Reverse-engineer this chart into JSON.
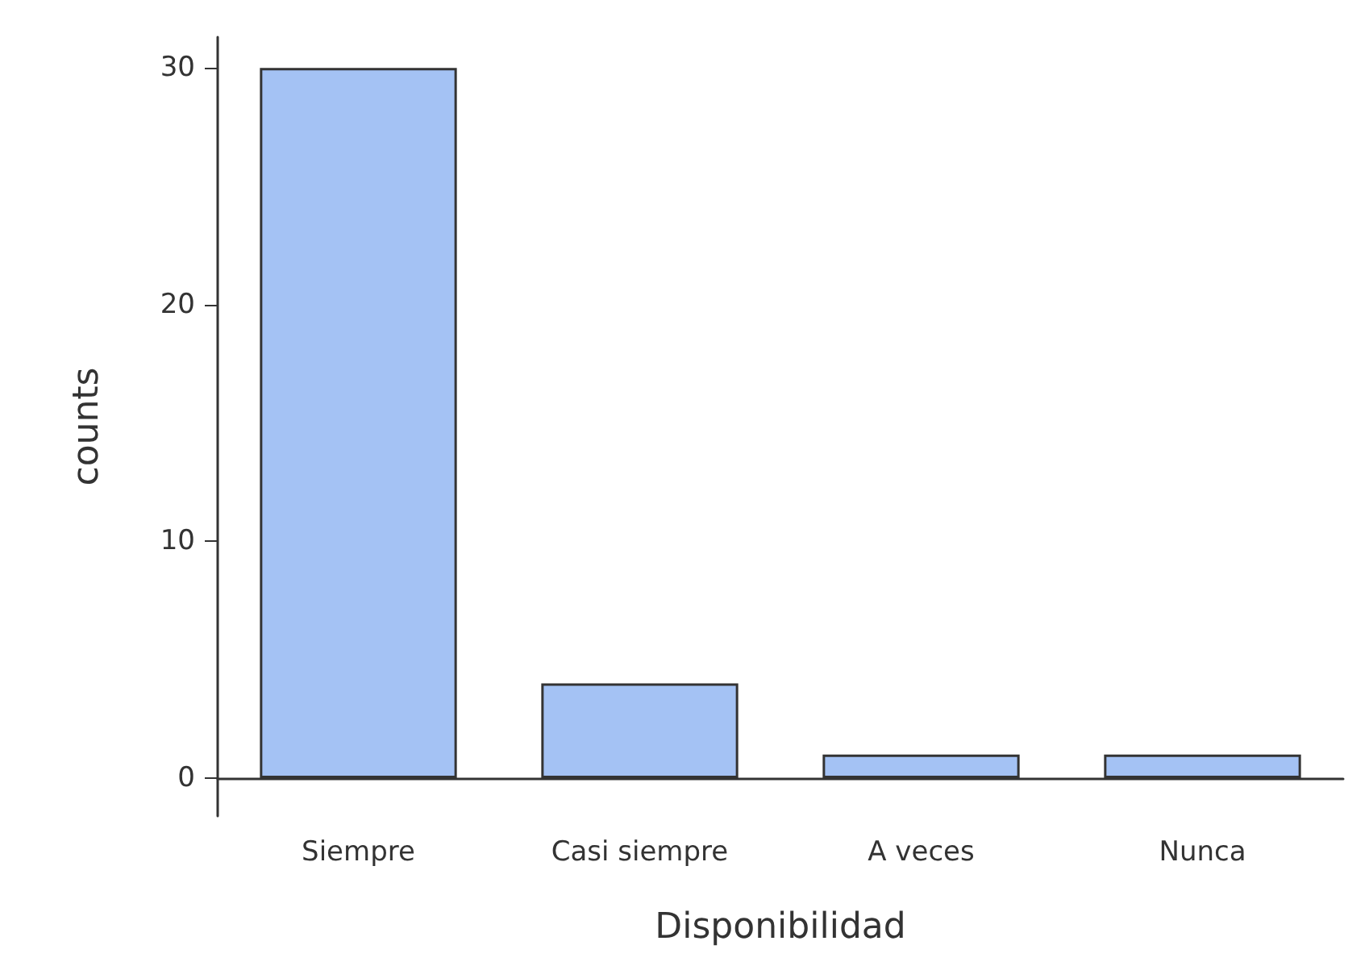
{
  "chart_data": {
    "type": "bar",
    "xlabel": "Disponibilidad",
    "ylabel": "counts",
    "categories": [
      "Siempre",
      "Casi siempre",
      "A veces",
      "Nunca"
    ],
    "values": [
      30,
      4,
      1,
      1
    ],
    "color": "#a4c2f4",
    "ylim": [
      -1.6,
      31.3
    ],
    "yticks": [
      0,
      10,
      20,
      30
    ],
    "grid": false
  }
}
